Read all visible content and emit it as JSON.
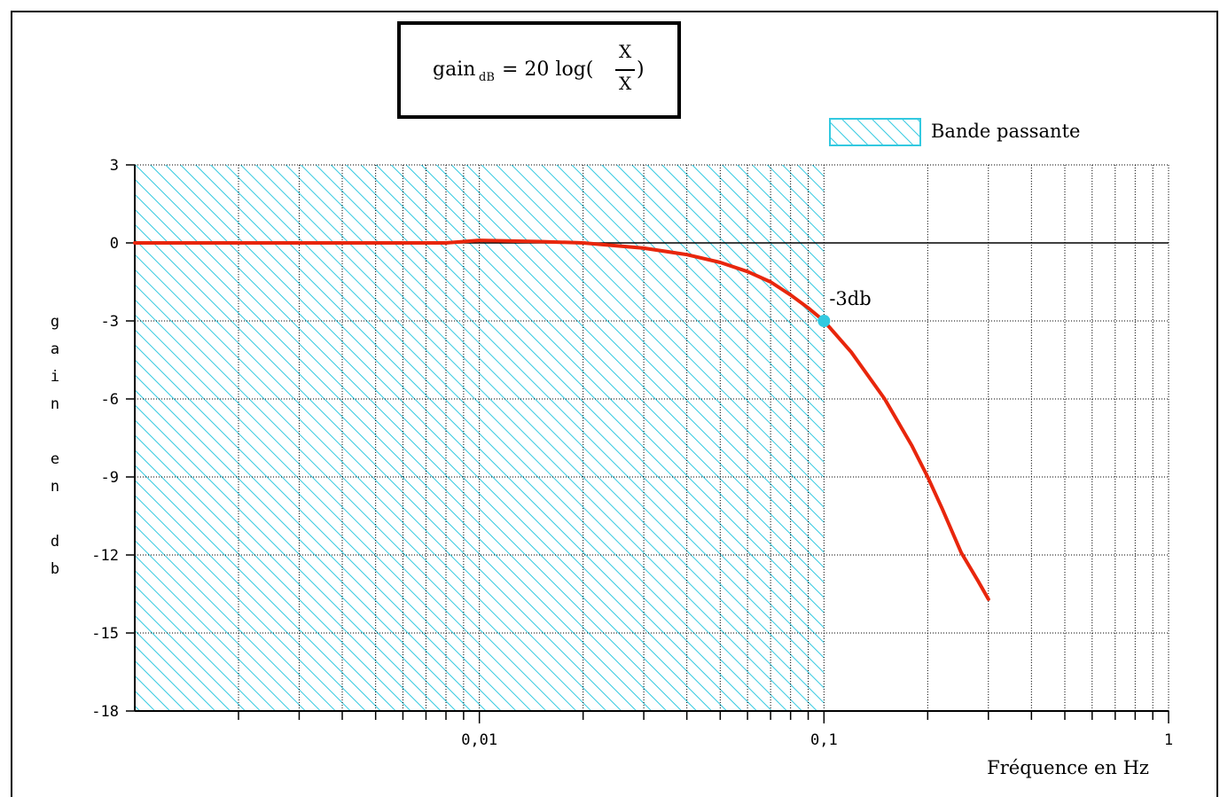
{
  "formula": {
    "lhs": "gain",
    "subscript": "dB",
    "eq": "= 20 log(",
    "numerator": "X",
    "denominator": "X",
    "close": ")"
  },
  "chart_data": {
    "type": "line",
    "xscale": "log",
    "xlim": [
      0.001,
      1
    ],
    "ylim": [
      -18,
      3
    ],
    "xticklabels": [
      {
        "value": 0.01,
        "label": "0,01"
      },
      {
        "value": 0.1,
        "label": "0,1"
      },
      {
        "value": 1,
        "label": "1"
      }
    ],
    "yticks": [
      3,
      0,
      -3,
      -6,
      -9,
      -12,
      -15,
      -18
    ],
    "yticklabels": [
      "3",
      "0",
      "-3",
      "-6",
      "-9",
      "-12",
      "-15",
      "-18"
    ],
    "ylabel_chars": [
      "g",
      "a",
      "i",
      "n",
      "",
      "e",
      "n",
      "",
      "d",
      "b"
    ],
    "xlabel": "Fréquence en Hz",
    "grid": true,
    "legend": {
      "label": "Bande passante",
      "placement": "top-right"
    },
    "band": {
      "from": 0.001,
      "to": 0.1,
      "color": "#33c9e0"
    },
    "series": [
      {
        "color": "#e8260c",
        "x": [
          0.001,
          0.002,
          0.004,
          0.006,
          0.008,
          0.01,
          0.015,
          0.02,
          0.03,
          0.04,
          0.05,
          0.06,
          0.07,
          0.08,
          0.09,
          0.1,
          0.12,
          0.15,
          0.18,
          0.2,
          0.22,
          0.25,
          0.28,
          0.3
        ],
        "values": [
          0,
          0,
          0,
          0,
          0,
          0.1,
          0.05,
          0,
          -0.2,
          -0.45,
          -0.75,
          -1.1,
          -1.5,
          -2.0,
          -2.5,
          -3.0,
          -4.2,
          -6.0,
          -7.8,
          -9.0,
          -10.2,
          -11.9,
          -13.0,
          -13.7
        ]
      }
    ],
    "marker": {
      "x": 0.1,
      "y": -3,
      "label": "-3db",
      "color": "#33c9e0"
    },
    "reference_line": {
      "y": 0
    }
  }
}
